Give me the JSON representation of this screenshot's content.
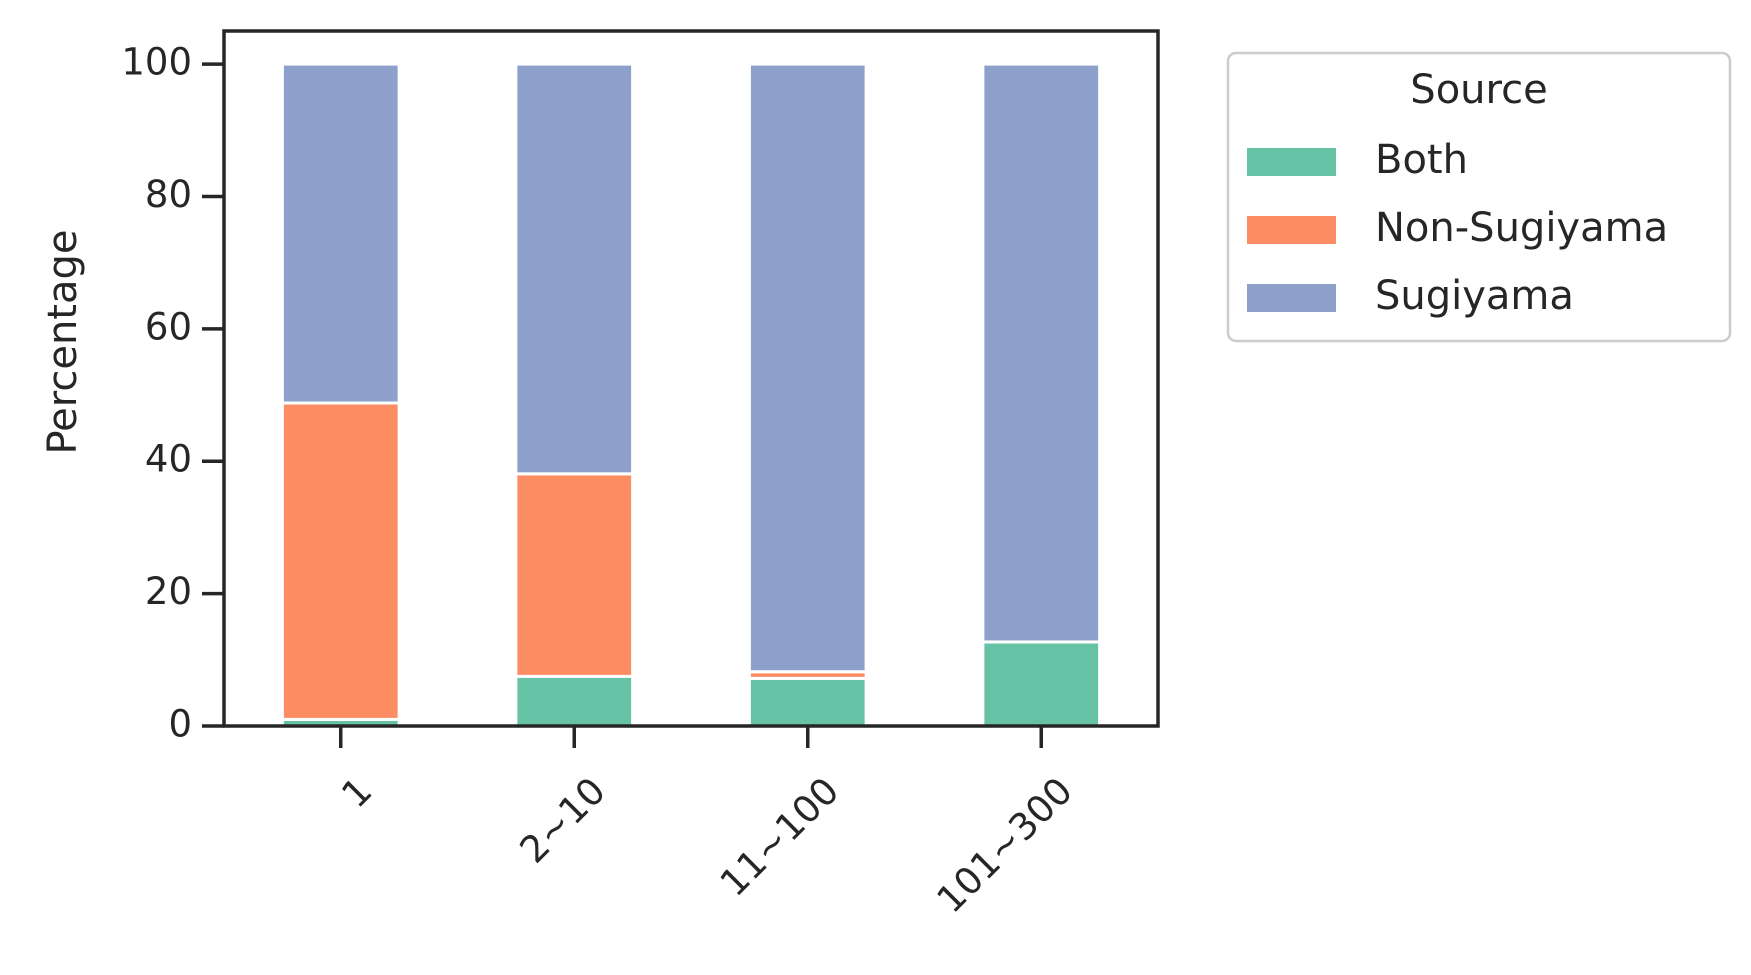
{
  "chart_data": {
    "type": "bar",
    "stacked": true,
    "title": "",
    "xlabel": "",
    "ylabel": "Percentage",
    "ylim": [
      0,
      105
    ],
    "yticks": [
      0,
      20,
      40,
      60,
      80,
      100
    ],
    "categories": [
      "1",
      "2~10",
      "11~100",
      "101~300"
    ],
    "series": [
      {
        "name": "Both",
        "color": "#66c2a5",
        "values": [
          1.0,
          7.5,
          7.2,
          12.7
        ]
      },
      {
        "name": "Non-Sugiyama",
        "color": "#fc8d62",
        "values": [
          47.8,
          30.6,
          1.0,
          0.0
        ]
      },
      {
        "name": "Sugiyama",
        "color": "#8da0cb",
        "values": [
          51.2,
          61.9,
          91.8,
          87.3
        ]
      }
    ],
    "legend": {
      "title": "Source",
      "placement": "outside-top-right"
    },
    "grid": false
  }
}
